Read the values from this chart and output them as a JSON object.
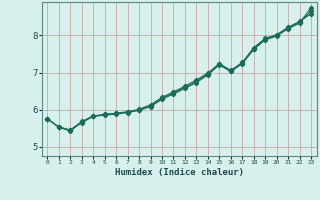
{
  "xlabel": "Humidex (Indice chaleur)",
  "ylabel": "",
  "background_color": "#d8f0ec",
  "grid_color": "#c8a8a8",
  "line_color": "#1a6b5a",
  "xlim": [
    -0.5,
    23.5
  ],
  "ylim": [
    4.75,
    8.9
  ],
  "xticks": [
    0,
    1,
    2,
    3,
    4,
    5,
    6,
    7,
    8,
    9,
    10,
    11,
    12,
    13,
    14,
    15,
    16,
    17,
    18,
    19,
    20,
    21,
    22,
    23
  ],
  "yticks": [
    5,
    6,
    7,
    8
  ],
  "line1_x": [
    0,
    1,
    2,
    3,
    4,
    5,
    6,
    7,
    8,
    9,
    10,
    11,
    12,
    13,
    14,
    15,
    16,
    17,
    18,
    19,
    20,
    21,
    22,
    23
  ],
  "line1_y": [
    5.75,
    5.53,
    5.45,
    5.65,
    5.82,
    5.85,
    5.88,
    5.92,
    5.98,
    6.08,
    6.28,
    6.42,
    6.57,
    6.73,
    6.93,
    7.22,
    7.03,
    7.24,
    7.62,
    7.88,
    7.98,
    8.18,
    8.33,
    8.75
  ],
  "line2_x": [
    0,
    1,
    2,
    3,
    4,
    5,
    6,
    7,
    8,
    9,
    10,
    11,
    12,
    13,
    14,
    15,
    16,
    17,
    18,
    19,
    20,
    21,
    22,
    23
  ],
  "line2_y": [
    5.75,
    5.53,
    5.45,
    5.68,
    5.83,
    5.87,
    5.9,
    5.94,
    6.01,
    6.13,
    6.33,
    6.48,
    6.63,
    6.8,
    6.99,
    7.24,
    7.06,
    7.27,
    7.67,
    7.92,
    8.02,
    8.22,
    8.38,
    8.58
  ],
  "line3_x": [
    0,
    1,
    2,
    3,
    4,
    5,
    6,
    7,
    8,
    9,
    10,
    11,
    12,
    13,
    14,
    15,
    16,
    17,
    18,
    19,
    20,
    21,
    22,
    23
  ],
  "line3_y": [
    5.75,
    5.53,
    5.42,
    5.66,
    5.82,
    5.87,
    5.9,
    5.94,
    5.99,
    6.1,
    6.3,
    6.45,
    6.6,
    6.76,
    6.96,
    7.2,
    7.03,
    7.25,
    7.64,
    7.9,
    8.0,
    8.2,
    8.35,
    8.65
  ]
}
